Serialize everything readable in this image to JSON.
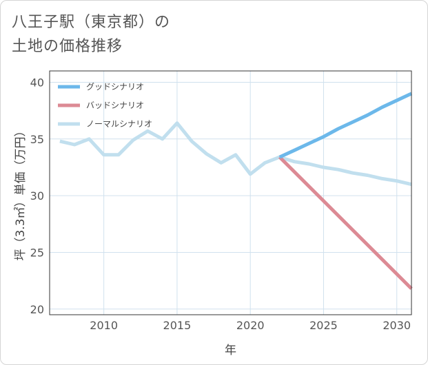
{
  "title_lines": [
    "八王子駅（東京都）の",
    "土地の価格推移"
  ],
  "chart_data": {
    "type": "line",
    "xlabel": "年",
    "ylabel": "坪（3.3㎡）単価（万円）",
    "xlim": [
      2006.3,
      2031
    ],
    "ylim": [
      19.5,
      41
    ],
    "xticks": [
      2010,
      2015,
      2020,
      2025,
      2030
    ],
    "yticks": [
      20,
      25,
      30,
      35,
      40
    ],
    "grid": true,
    "legend_position": "top-left",
    "series": [
      {
        "name": "グッドシナリオ",
        "color": "#6cb8ea",
        "x": [
          2022,
          2023,
          2024,
          2025,
          2026,
          2027,
          2028,
          2029,
          2030,
          2031
        ],
        "y": [
          33.4,
          34.0,
          34.6,
          35.2,
          35.9,
          36.5,
          37.1,
          37.8,
          38.4,
          39.0
        ]
      },
      {
        "name": "バッドシナリオ",
        "color": "#dc8a94",
        "x": [
          2022,
          2031
        ],
        "y": [
          33.4,
          21.8
        ]
      },
      {
        "name": "ノーマルシナリオ",
        "color": "#c1dfee",
        "x": [
          2007,
          2008,
          2009,
          2010,
          2011,
          2012,
          2013,
          2014,
          2015,
          2016,
          2017,
          2018,
          2019,
          2020,
          2021,
          2022,
          2023,
          2024,
          2025,
          2026,
          2027,
          2028,
          2029,
          2030,
          2031
        ],
        "y": [
          34.8,
          34.5,
          35.0,
          33.6,
          33.6,
          34.9,
          35.7,
          35.0,
          36.4,
          34.8,
          33.7,
          32.9,
          33.6,
          31.9,
          32.9,
          33.4,
          33.0,
          32.8,
          32.5,
          32.3,
          32.0,
          31.8,
          31.5,
          31.3,
          31.0
        ]
      }
    ]
  }
}
